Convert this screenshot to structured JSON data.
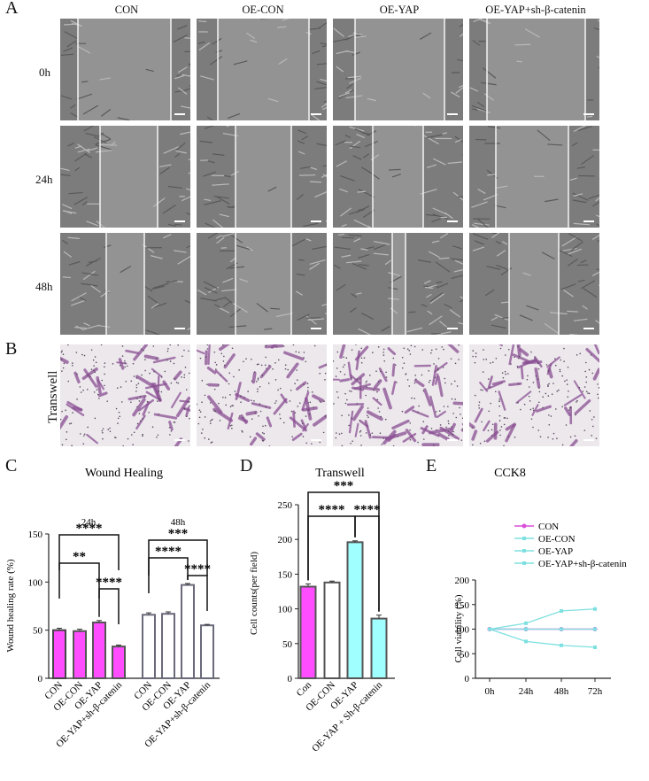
{
  "panels": {
    "A": "A",
    "B": "B",
    "C": "C",
    "D": "D",
    "E": "E"
  },
  "micrographs": {
    "columns": [
      "CON",
      "OE-CON",
      "OE-YAP",
      "OE-YAP+sh-β-catenin"
    ],
    "rows": [
      "0h",
      "24h",
      "48h"
    ],
    "transwell_row_label": "Transwell",
    "scale_label": "100 μm"
  },
  "chart_data": [
    {
      "type": "bar",
      "title": "Wound Healing",
      "ylabel": "Wound healing rate (%)",
      "ylim": [
        0,
        150
      ],
      "yticks": [
        0,
        50,
        100,
        150
      ],
      "groups": [
        "24h",
        "48h"
      ],
      "categories": [
        "CON",
        "OE-CON",
        "OE-YAP",
        "OE-YAP+sh-β-catenin"
      ],
      "series": [
        {
          "values": [
            50,
            49,
            58,
            33
          ],
          "errors": [
            2,
            2,
            2,
            1.5
          ]
        },
        {
          "values": [
            66,
            67,
            97,
            55
          ],
          "errors": [
            2,
            2,
            1.5,
            1
          ]
        }
      ],
      "colors": [
        "#ff4dff",
        "#ffffff",
        "#ffffff",
        "#ffffff"
      ],
      "significance": [
        {
          "group": "24h",
          "from": 0,
          "to": 3,
          "label": "****"
        },
        {
          "group": "24h",
          "from": 0,
          "to": 2,
          "label": "**"
        },
        {
          "group": "24h",
          "from": 2,
          "to": 3,
          "label": "****"
        },
        {
          "group": "48h",
          "from": 0,
          "to": 3,
          "label": "***"
        },
        {
          "group": "48h",
          "from": 0,
          "to": 2,
          "label": "****"
        },
        {
          "group": "48h",
          "from": 2,
          "to": 3,
          "label": "****"
        }
      ]
    },
    {
      "type": "bar",
      "title": "Transwell",
      "ylabel": "Cell counts(per field)",
      "ylim": [
        0,
        250
      ],
      "yticks": [
        0,
        50,
        100,
        150,
        200,
        250
      ],
      "categories": [
        "Con",
        "OE-CON",
        "OE-YAP",
        "OE-YAP + Sh-β-catenin"
      ],
      "values": [
        132,
        138,
        196,
        86
      ],
      "errors": [
        4,
        2,
        2,
        5
      ],
      "colors": [
        "#ff4dff",
        "#ffffff",
        "#a0ffff",
        "#a0ffff"
      ],
      "significance": [
        {
          "from": 0,
          "to": 3,
          "label": "***"
        },
        {
          "from": 0,
          "to": 2,
          "label": "****"
        },
        {
          "from": 2,
          "to": 3,
          "label": "****"
        }
      ]
    },
    {
      "type": "line",
      "title": "CCK8",
      "ylabel": "Cell viability (%)",
      "ylim": [
        0,
        200
      ],
      "yticks": [
        0,
        50,
        100,
        150,
        200
      ],
      "x": [
        "0h",
        "24h",
        "48h",
        "72h"
      ],
      "series": [
        {
          "name": "CON",
          "values": [
            100,
            100,
            100,
            100
          ],
          "color": "#d94fd9"
        },
        {
          "name": "OE-CON",
          "values": [
            100,
            100,
            100,
            100
          ],
          "color": "#7ee0e0"
        },
        {
          "name": "OE-YAP",
          "values": [
            100,
            112,
            137,
            141
          ],
          "color": "#7ee0e0"
        },
        {
          "name": "OE-YAP+sh-β-catenin",
          "values": [
            100,
            75,
            67,
            63
          ],
          "color": "#7ee0e0"
        }
      ],
      "legend": "top"
    }
  ]
}
